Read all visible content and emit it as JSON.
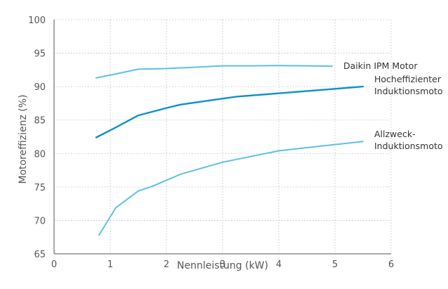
{
  "chart_data": {
    "type": "line",
    "xlabel": "Nennleistung (kW)",
    "ylabel": "Motoreffizienz (%)",
    "xlim": [
      0,
      6
    ],
    "ylim": [
      65,
      100
    ],
    "x_ticks": [
      0,
      1,
      2,
      3,
      4,
      5,
      6
    ],
    "y_ticks": [
      65,
      70,
      75,
      80,
      85,
      90,
      95,
      100
    ],
    "grid": "dotted",
    "legend": "inline labels at right end of lines",
    "series": [
      {
        "name": "Daikin IPM Motor",
        "label_lines": [
          "Daikin IPM Motor"
        ],
        "color": "#5bc0e8",
        "points": [
          [
            0.75,
            91.3
          ],
          [
            1.1,
            91.9
          ],
          [
            1.5,
            92.6
          ],
          [
            2.0,
            92.7
          ],
          [
            2.5,
            92.9
          ],
          [
            3.0,
            93.1
          ],
          [
            3.5,
            93.1
          ],
          [
            4.0,
            93.15
          ],
          [
            4.5,
            93.1
          ],
          [
            4.95,
            93.05
          ]
        ]
      },
      {
        "name": "Hocheffizienter Induktionsmotor",
        "label_lines": [
          "Hocheffizienter",
          "Induktionsmoto"
        ],
        "color": "#0f8fcf",
        "points": [
          [
            0.75,
            82.4
          ],
          [
            1.1,
            83.9
          ],
          [
            1.5,
            85.7
          ],
          [
            2.0,
            86.8
          ],
          [
            2.25,
            87.3
          ],
          [
            2.75,
            87.9
          ],
          [
            3.25,
            88.5
          ],
          [
            4.0,
            89.0
          ],
          [
            4.75,
            89.5
          ],
          [
            5.5,
            90.0
          ]
        ]
      },
      {
        "name": "Allzweck-Induktionsmotor",
        "label_lines": [
          "Allzweck-",
          "Induktionsmoto"
        ],
        "color": "#5bc0e8",
        "points": [
          [
            0.8,
            67.8
          ],
          [
            1.1,
            71.9
          ],
          [
            1.5,
            74.4
          ],
          [
            1.75,
            75.1
          ],
          [
            2.25,
            76.9
          ],
          [
            3.0,
            78.7
          ],
          [
            4.0,
            80.4
          ],
          [
            4.75,
            81.1
          ],
          [
            5.5,
            81.8
          ]
        ]
      }
    ]
  }
}
